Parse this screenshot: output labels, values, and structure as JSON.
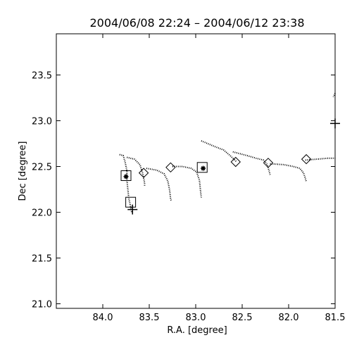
{
  "chart_data": {
    "type": "scatter",
    "title": "2004/06/08 22:24 – 2004/06/12 23:38",
    "xlabel": "R.A. [degree]",
    "ylabel": "Dec [degree]",
    "xlim": [
      84.5,
      81.5
    ],
    "ylim": [
      20.95,
      23.95
    ],
    "x_reversed": true,
    "grid": false,
    "x_ticks": [
      84.0,
      83.5,
      83.0,
      82.5,
      82.0,
      81.5
    ],
    "x_tick_labels": [
      "84.0",
      "83.5",
      "83.0",
      "82.5",
      "82.0",
      "81.5"
    ],
    "y_ticks": [
      21.0,
      21.5,
      22.0,
      22.5,
      23.0,
      23.5
    ],
    "y_tick_labels": [
      "21.0",
      "21.5",
      "22.0",
      "22.5",
      "23.0",
      "23.5"
    ],
    "series": [
      {
        "marker": "dot-track",
        "segments": [
          [
            [
              83.82,
              22.63
            ],
            [
              83.78,
              22.62
            ],
            [
              83.76,
              22.55
            ],
            [
              83.74,
              22.45
            ],
            [
              83.74,
              22.35
            ],
            [
              83.73,
              22.25
            ],
            [
              83.72,
              22.15
            ],
            [
              83.7,
              22.06
            ],
            [
              83.69,
              22.0
            ]
          ],
          [
            [
              83.74,
              22.6
            ],
            [
              83.66,
              22.58
            ],
            [
              83.6,
              22.52
            ],
            [
              83.57,
              22.42
            ],
            [
              83.55,
              22.32
            ],
            [
              83.55,
              22.29
            ]
          ],
          [
            [
              83.53,
              22.48
            ],
            [
              83.42,
              22.46
            ],
            [
              83.34,
              22.42
            ],
            [
              83.3,
              22.34
            ],
            [
              83.28,
              22.24
            ],
            [
              83.27,
              22.14
            ],
            [
              83.26,
              22.12
            ]
          ],
          [
            [
              83.25,
              22.5
            ],
            [
              83.14,
              22.5
            ],
            [
              83.05,
              22.48
            ],
            [
              82.99,
              22.44
            ],
            [
              82.96,
              22.35
            ],
            [
              82.95,
              22.25
            ],
            [
              82.94,
              22.16
            ]
          ],
          [
            [
              82.94,
              22.78
            ],
            [
              82.8,
              22.72
            ],
            [
              82.7,
              22.68
            ],
            [
              82.63,
              22.62
            ],
            [
              82.59,
              22.58
            ],
            [
              82.56,
              22.55
            ]
          ],
          [
            [
              82.6,
              22.66
            ],
            [
              82.45,
              22.62
            ],
            [
              82.35,
              22.59
            ],
            [
              82.27,
              22.57
            ],
            [
              82.23,
              22.52
            ],
            [
              82.21,
              22.45
            ],
            [
              82.2,
              22.41
            ]
          ],
          [
            [
              82.2,
              22.53
            ],
            [
              82.05,
              22.52
            ],
            [
              81.95,
              22.5
            ],
            [
              81.88,
              22.48
            ],
            [
              81.84,
              22.43
            ],
            [
              81.82,
              22.37
            ],
            [
              81.81,
              22.33
            ]
          ],
          [
            [
              81.82,
              22.57
            ],
            [
              81.7,
              22.58
            ],
            [
              81.58,
              22.59
            ],
            [
              81.5,
              22.59
            ]
          ],
          [
            [
              81.5,
              23.3
            ],
            [
              81.52,
              23.26
            ]
          ]
        ]
      },
      {
        "marker": "diamond",
        "points": [
          [
            83.56,
            22.43
          ],
          [
            83.27,
            22.49
          ],
          [
            82.57,
            22.55
          ],
          [
            82.22,
            22.54
          ],
          [
            81.81,
            22.58
          ]
        ]
      },
      {
        "marker": "square",
        "points": [
          [
            83.75,
            22.4
          ],
          [
            83.7,
            22.11
          ],
          [
            82.93,
            22.49
          ]
        ]
      },
      {
        "marker": "asterisk",
        "points": [
          [
            83.75,
            22.39
          ],
          [
            82.92,
            22.48
          ]
        ]
      },
      {
        "marker": "plus",
        "points": [
          [
            83.68,
            22.03
          ],
          [
            81.5,
            22.97
          ]
        ]
      }
    ]
  }
}
